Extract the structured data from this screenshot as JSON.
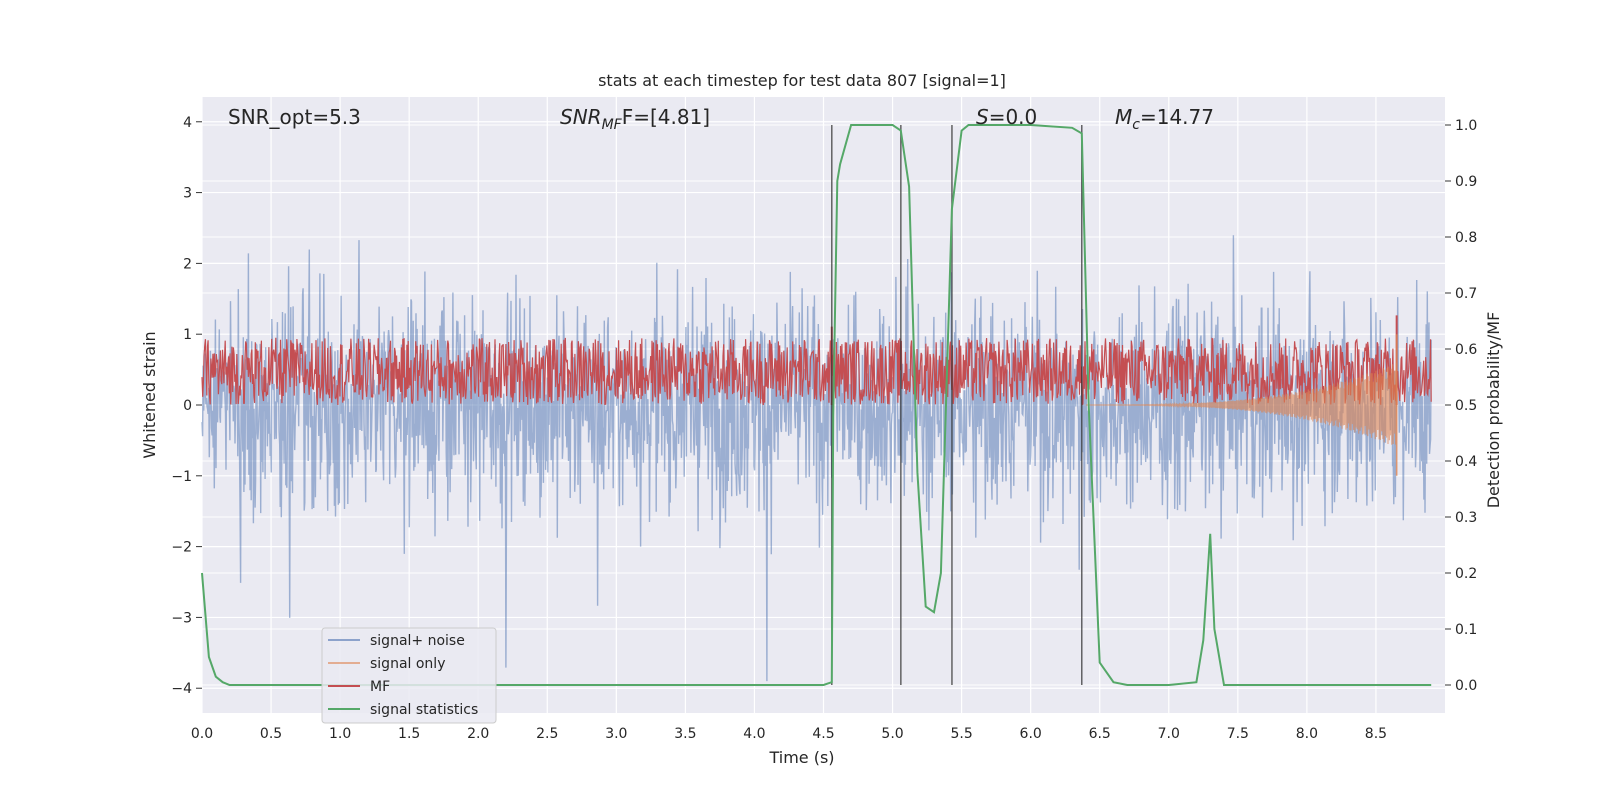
{
  "chart_data": {
    "type": "line",
    "title": "stats at each timestep for test data 807 [signal=1]",
    "xlabel": "Time (s)",
    "ylabel_left": "Whitened strain",
    "ylabel_right": "Detection probability/MF",
    "xlim": [
      0.0,
      9.0
    ],
    "ylim_left": [
      -4.35,
      4.35
    ],
    "ylim_right": [
      -0.05,
      1.05
    ],
    "x_ticks": [
      "0.0",
      "0.5",
      "1.0",
      "1.5",
      "2.0",
      "2.5",
      "3.0",
      "3.5",
      "4.0",
      "4.5",
      "5.0",
      "5.5",
      "6.0",
      "6.5",
      "7.0",
      "7.5",
      "8.0",
      "8.5"
    ],
    "y_ticks_left": [
      "4",
      "3",
      "2",
      "1",
      "0",
      "−1",
      "−2",
      "−3",
      "−4"
    ],
    "y_ticks_right": [
      "1.0",
      "0.9",
      "0.8",
      "0.7",
      "0.6",
      "0.5",
      "0.4",
      "0.3",
      "0.2",
      "0.1",
      "0.0"
    ],
    "grid": true,
    "legend_position": "lower-left",
    "annotations": {
      "snr_opt": "SNR_opt=5.3",
      "snr_mf_prefix": "SNR",
      "snr_mf_sub": "MF",
      "snr_mf_suffix": "F=[4.81]",
      "s_label": "S",
      "s_value": "=0.0",
      "mc_label": "M",
      "mc_sub": "c",
      "mc_value": "=14.77"
    },
    "vertical_lines_x": [
      4.56,
      5.06,
      5.43,
      6.37
    ],
    "series": [
      {
        "name": "signal+ noise",
        "color": "#4C72B0",
        "alpha": 0.5,
        "axis": "left",
        "kind": "noise",
        "amplitude_range": [
          -3.9,
          3.7
        ],
        "x_range": [
          0.0,
          8.9
        ]
      },
      {
        "name": "signal only",
        "color": "#DD8452",
        "alpha": 0.5,
        "axis": "left",
        "kind": "chirp",
        "x_range": [
          6.4,
          8.65
        ],
        "peak_at_x": 8.65,
        "peak_min": -1.0,
        "peak_max": 1.0
      },
      {
        "name": "MF",
        "color": "#C44E52",
        "axis": "right",
        "kind": "band",
        "band_range": [
          0.5,
          0.62
        ],
        "spikes": [
          {
            "x": 4.56,
            "y": 0.64
          },
          {
            "x": 8.65,
            "y": 0.66
          }
        ]
      },
      {
        "name": "signal statistics",
        "color": "#55A868",
        "axis": "right",
        "x": [
          0.0,
          0.05,
          0.1,
          0.15,
          0.2,
          0.5,
          1.0,
          2.0,
          3.0,
          4.0,
          4.5,
          4.56,
          4.57,
          4.6,
          4.62,
          4.7,
          5.0,
          5.06,
          5.12,
          5.18,
          5.24,
          5.3,
          5.35,
          5.43,
          5.5,
          5.55,
          6.0,
          6.3,
          6.37,
          6.42,
          6.5,
          6.6,
          6.7,
          7.0,
          7.2,
          7.25,
          7.3,
          7.33,
          7.4,
          7.5,
          8.0,
          8.5,
          8.9
        ],
        "y": [
          0.2,
          0.05,
          0.015,
          0.005,
          0.0,
          0.0,
          0.0,
          0.0,
          0.0,
          0.0,
          0.0,
          0.005,
          0.48,
          0.9,
          0.93,
          1.0,
          1.0,
          0.99,
          0.89,
          0.38,
          0.14,
          0.13,
          0.2,
          0.85,
          0.99,
          1.0,
          1.0,
          0.995,
          0.985,
          0.5,
          0.04,
          0.005,
          0.0,
          0.0,
          0.005,
          0.08,
          0.27,
          0.1,
          0.0,
          0.0,
          0.0,
          0.0,
          0.0
        ]
      }
    ]
  }
}
